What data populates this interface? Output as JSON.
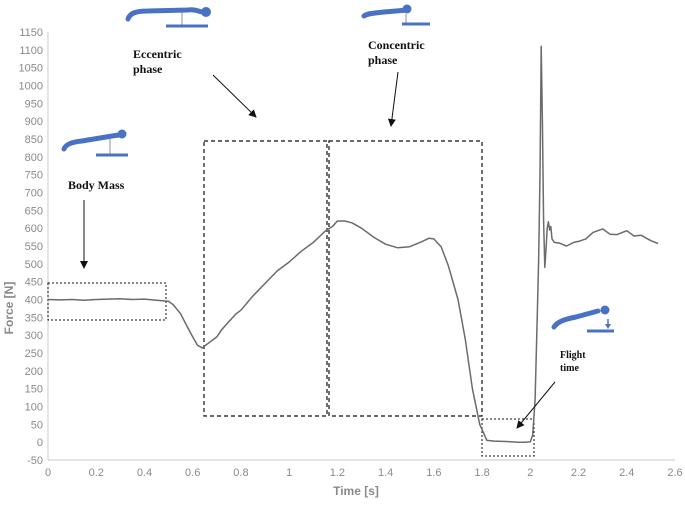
{
  "chart_data": {
    "type": "line",
    "title": "",
    "xlabel": "Time [s]",
    "ylabel": "Force [N]",
    "xlim": [
      0,
      2.6
    ],
    "ylim": [
      -50,
      1150
    ],
    "xticks": [
      0,
      0.2,
      0.4,
      0.6,
      0.8,
      1,
      1.2,
      1.4,
      1.6,
      1.8,
      2,
      2.2,
      2.4,
      2.6
    ],
    "yticks": [
      -50,
      0,
      50,
      100,
      150,
      200,
      250,
      300,
      350,
      400,
      450,
      500,
      550,
      600,
      650,
      700,
      750,
      800,
      850,
      900,
      950,
      1000,
      1050,
      1100,
      1150
    ],
    "grid": false,
    "line_color": "#6b6b6b",
    "series": [
      {
        "x": [
          0,
          0.05,
          0.1,
          0.15,
          0.2,
          0.25,
          0.3,
          0.35,
          0.4,
          0.45,
          0.5,
          0.52,
          0.55,
          0.58,
          0.6,
          0.62,
          0.64,
          0.65,
          0.67,
          0.7,
          0.72,
          0.75,
          0.78,
          0.8,
          0.85,
          0.9,
          0.95,
          1.0,
          1.05,
          1.1,
          1.15,
          1.18,
          1.2,
          1.23,
          1.26,
          1.3,
          1.35,
          1.4,
          1.45,
          1.5,
          1.55,
          1.58,
          1.6,
          1.63,
          1.66,
          1.7,
          1.73,
          1.76,
          1.79,
          1.82,
          1.85,
          1.9,
          1.95,
          1.98,
          2.0,
          2.01,
          2.02,
          2.025,
          2.03,
          2.035,
          2.04,
          2.045,
          2.05,
          2.055,
          2.06,
          2.065,
          2.07,
          2.075,
          2.08,
          2.085,
          2.09,
          2.1,
          2.12,
          2.15,
          2.18,
          2.2,
          2.23,
          2.26,
          2.3,
          2.33,
          2.36,
          2.4,
          2.43,
          2.46,
          2.5,
          2.53
        ],
        "y": [
          400,
          399,
          400,
          398,
          400,
          401,
          402,
          400,
          401,
          398,
          395,
          385,
          360,
          320,
          295,
          272,
          264,
          270,
          280,
          295,
          315,
          338,
          360,
          370,
          410,
          445,
          480,
          505,
          535,
          560,
          592,
          605,
          620,
          620,
          615,
          600,
          575,
          555,
          545,
          548,
          562,
          572,
          570,
          548,
          495,
          400,
          290,
          150,
          50,
          5,
          3,
          2,
          0,
          0,
          1,
          20,
          120,
          250,
          380,
          520,
          750,
          1110,
          900,
          620,
          490,
          540,
          600,
          618,
          595,
          605,
          570,
          560,
          558,
          550,
          560,
          563,
          570,
          588,
          598,
          583,
          582,
          593,
          578,
          580,
          565,
          557
        ]
      }
    ]
  },
  "annotations": {
    "eccentric": "Eccentric\nphase",
    "concentric": "Concentric\nphase",
    "body_mass": "Body Mass",
    "flight": "Flight\ntime"
  },
  "colors": {
    "figure_blue": "#4a72c4",
    "figure_gray": "#c7c7c7",
    "box_stroke": "#111111"
  }
}
